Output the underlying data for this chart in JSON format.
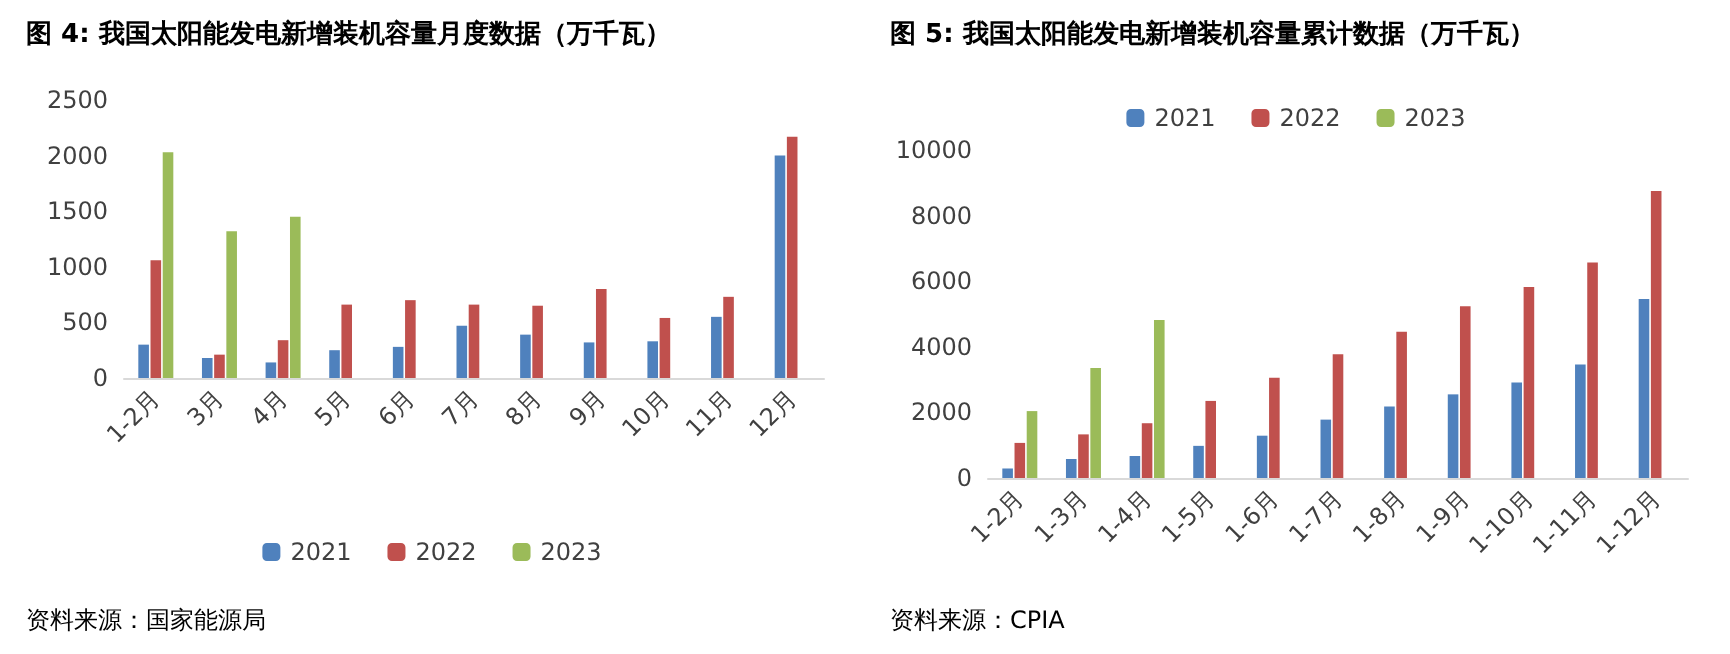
{
  "chart_data": [
    {
      "type": "bar",
      "title": "图 4: 我国太阳能发电新增装机容量月度数据（万千瓦）",
      "categories": [
        "1-2月",
        "3月",
        "4月",
        "5月",
        "6月",
        "7月",
        "8月",
        "9月",
        "10月",
        "11月",
        "12月"
      ],
      "series": [
        {
          "name": "2021",
          "color": "#4f81bd",
          "values": [
            300,
            180,
            140,
            250,
            280,
            470,
            390,
            320,
            330,
            550,
            2000
          ]
        },
        {
          "name": "2022",
          "color": "#c0504d",
          "values": [
            1060,
            210,
            340,
            660,
            700,
            660,
            650,
            800,
            540,
            730,
            2170
          ]
        },
        {
          "name": "2023",
          "color": "#9bbb59",
          "values": [
            2030,
            1320,
            1450,
            null,
            null,
            null,
            null,
            null,
            null,
            null,
            null
          ]
        }
      ],
      "ylim": [
        0,
        2500
      ],
      "yticks": [
        0,
        500,
        1000,
        1500,
        2000,
        2500
      ],
      "grid": false,
      "legend": "bottom",
      "annotations": [
        "资料来源：国家能源局"
      ]
    },
    {
      "type": "bar",
      "title": "图 5: 我国太阳能发电新增装机容量累计数据（万千瓦）",
      "categories": [
        "1-2月",
        "1-3月",
        "1-4月",
        "1-5月",
        "1-6月",
        "1-7月",
        "1-8月",
        "1-9月",
        "1-10月",
        "1-11月",
        "1-12月"
      ],
      "series": [
        {
          "name": "2021",
          "color": "#4f81bd",
          "values": [
            290,
            580,
            670,
            980,
            1290,
            1780,
            2180,
            2550,
            2910,
            3460,
            5460
          ]
        },
        {
          "name": "2022",
          "color": "#c0504d",
          "values": [
            1070,
            1330,
            1670,
            2350,
            3060,
            3770,
            4460,
            5240,
            5820,
            6570,
            8750
          ]
        },
        {
          "name": "2023",
          "color": "#9bbb59",
          "values": [
            2040,
            3350,
            4820,
            null,
            null,
            null,
            null,
            null,
            null,
            null,
            null
          ]
        }
      ],
      "ylim": [
        0,
        10000
      ],
      "yticks": [
        0,
        2000,
        4000,
        6000,
        8000,
        10000
      ],
      "grid": false,
      "legend": "top",
      "annotations": [
        "资料来源：CPIA"
      ]
    }
  ]
}
